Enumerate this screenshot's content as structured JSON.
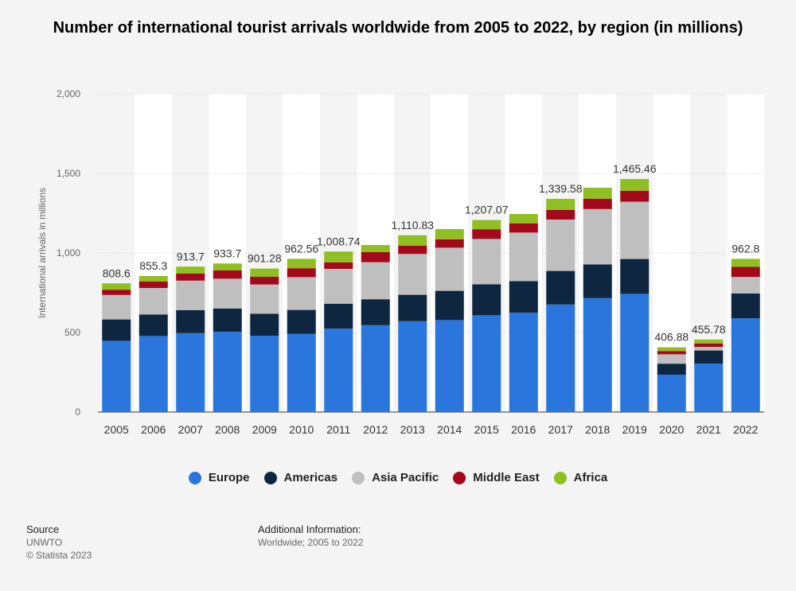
{
  "chart_data": {
    "type": "bar",
    "stacked": true,
    "title": "Number of international tourist arrivals worldwide from 2005 to 2022, by region (in millions)",
    "xlabel": "",
    "ylabel": "International arrivals in millions",
    "ylim": [
      0,
      2000
    ],
    "yticks": [
      "0",
      "500",
      "1,000",
      "1,500",
      "2,000"
    ],
    "ytick_values": [
      0,
      500,
      1000,
      1500,
      2000
    ],
    "grid": true,
    "legend_position": "bottom",
    "categories": [
      "2005",
      "2006",
      "2007",
      "2008",
      "2009",
      "2010",
      "2011",
      "2012",
      "2013",
      "2014",
      "2015",
      "2016",
      "2017",
      "2018",
      "2019",
      "2020",
      "2021",
      "2022"
    ],
    "totals": [
      808.6,
      855.3,
      913.7,
      933.7,
      901.28,
      962.56,
      1008.74,
      1050,
      1110.83,
      1150,
      1207.07,
      1245,
      1339.58,
      1410,
      1465.46,
      406.88,
      455.78,
      962.8
    ],
    "total_labels": [
      "808.6",
      "855.3",
      "913.7",
      "933.7",
      "901.28",
      "962.56",
      "1,008.74",
      "",
      "1,110.83",
      "",
      "1,207.07",
      "",
      "1,339.58",
      "",
      "1,465.46",
      "406.88",
      "455.78",
      "962.8"
    ],
    "series": [
      {
        "name": "Europe",
        "color": "#2a76dd",
        "values": [
          448,
          478,
          496,
          504,
          480,
          491,
          524,
          546,
          571,
          578,
          608,
          624,
          676,
          716,
          743,
          235,
          305,
          589
        ]
      },
      {
        "name": "Americas",
        "color": "#0f2641",
        "values": [
          134,
          135,
          144,
          147,
          138,
          151,
          157,
          163,
          166,
          184,
          195,
          199,
          211,
          212,
          219,
          69,
          82,
          156
        ]
      },
      {
        "name": "Asia Pacific",
        "color": "#bfbfbf",
        "values": [
          154,
          167,
          186,
          187,
          184,
          206,
          219,
          233,
          257,
          271,
          285,
          305,
          323,
          348,
          360,
          59,
          22,
          104
        ]
      },
      {
        "name": "Middle East",
        "color": "#a3091b",
        "values": [
          33,
          41,
          45,
          52,
          48,
          56,
          41,
          63,
          52,
          53,
          61,
          57,
          61,
          64,
          69,
          20,
          22,
          64
        ]
      },
      {
        "name": "Africa",
        "color": "#8fbf22",
        "values": [
          40,
          34,
          43,
          44,
          52,
          59,
          68,
          45,
          65,
          64,
          58,
          60,
          69,
          70,
          74,
          24,
          25,
          50
        ]
      }
    ]
  },
  "footer": {
    "source_heading": "Source",
    "source_text": "UNWTO",
    "copyright": "© Statista 2023",
    "additional_heading": "Additional Information:",
    "additional_text": "Worldwide; 2005 to 2022"
  }
}
